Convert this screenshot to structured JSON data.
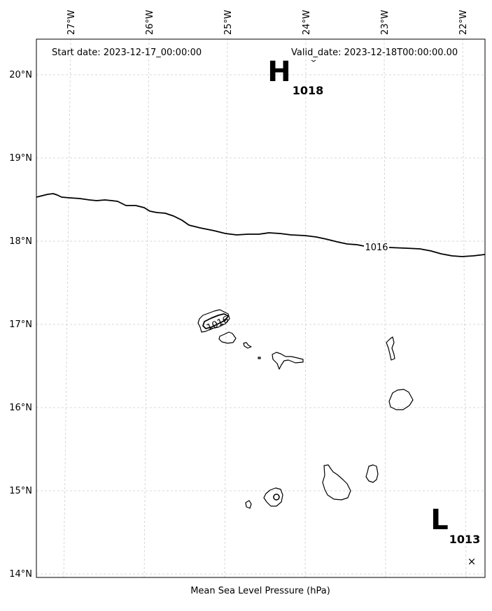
{
  "header": {
    "start_date": "Start date: 2023-12-17_00:00:00",
    "valid_date": "Valid_date: 2023-12-18T00:00:00.00"
  },
  "xlabel": "Mean Sea Level Pressure (hPa)",
  "lon_ticks": [
    {
      "label": "27°W",
      "value": -27
    },
    {
      "label": "26°W",
      "value": -26
    },
    {
      "label": "25°W",
      "value": -25
    },
    {
      "label": "24°W",
      "value": -24
    },
    {
      "label": "23°W",
      "value": -23
    },
    {
      "label": "22°W",
      "value": -22
    }
  ],
  "lat_ticks": [
    {
      "label": "20°N",
      "value": 20
    },
    {
      "label": "19°N",
      "value": 19
    },
    {
      "label": "18°N",
      "value": 18
    },
    {
      "label": "17°N",
      "value": 17
    },
    {
      "label": "16°N",
      "value": 16
    },
    {
      "label": "15°N",
      "value": 15
    },
    {
      "label": "14°N",
      "value": 14
    }
  ],
  "pressure_centers": [
    {
      "symbol": "H",
      "value": "1018",
      "lon": -24.35,
      "lat": 20.05
    },
    {
      "symbol": "L",
      "value": "1013",
      "lon": -22.15,
      "lat": 14.35
    }
  ],
  "isobars": [
    {
      "label": "1016"
    },
    {
      "label": "1016"
    }
  ],
  "markers": [
    {
      "symbol": "×",
      "lon": -21.9,
      "lat": 14.15
    }
  ]
}
